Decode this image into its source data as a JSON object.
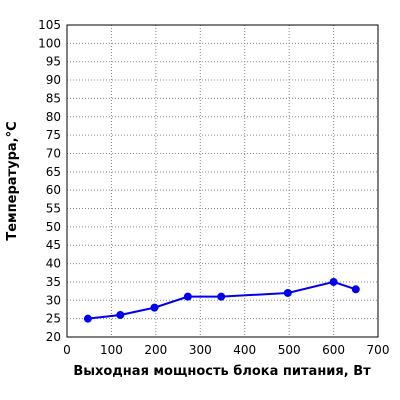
{
  "chart_data": {
    "type": "line",
    "xlabel": "Выходная мощность блока питания, Вт",
    "ylabel": "Температура,°C",
    "xlim": [
      0,
      700
    ],
    "ylim": [
      20,
      105
    ],
    "xticks": [
      0,
      100,
      200,
      300,
      400,
      500,
      600,
      700
    ],
    "yticks": [
      20,
      25,
      30,
      35,
      40,
      45,
      50,
      55,
      60,
      65,
      70,
      75,
      80,
      85,
      90,
      95,
      100,
      105
    ],
    "grid": true,
    "series": [
      {
        "color": "#0000ee",
        "points": [
          {
            "x": 47,
            "y": 25
          },
          {
            "x": 120,
            "y": 26
          },
          {
            "x": 197,
            "y": 28
          },
          {
            "x": 272,
            "y": 31
          },
          {
            "x": 347,
            "y": 31
          },
          {
            "x": 497,
            "y": 32
          },
          {
            "x": 600,
            "y": 35
          },
          {
            "x": 650,
            "y": 33
          }
        ]
      }
    ]
  }
}
